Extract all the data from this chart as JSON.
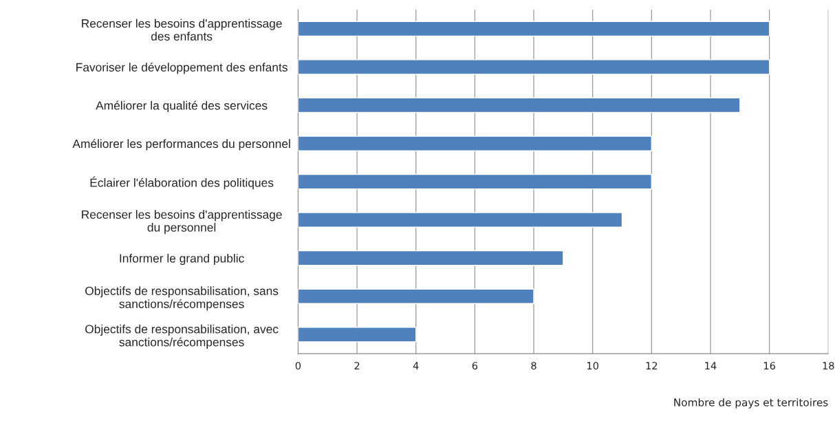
{
  "chart_data": {
    "type": "bar",
    "orientation": "horizontal",
    "categories": [
      "Recenser les besoins d'apprentissage\ndes enfants",
      "Favoriser le développement des enfants",
      "Améliorer la qualité des services",
      "Améliorer les performances du personnel",
      "Éclairer l'élaboration des politiques",
      "Recenser les besoins d'apprentissage\ndu personnel",
      "Informer le grand public",
      "Objectifs de responsabilisation, sans\nsanctions/récompenses",
      "Objectifs de responsabilisation, avec\nsanctions/récompenses"
    ],
    "values": [
      16,
      16,
      15,
      12,
      12,
      11,
      9,
      8,
      4
    ],
    "color": "#4f81bd",
    "xlabel": "Nombre de pays et territoires",
    "xlim": [
      0,
      18
    ],
    "xticks": [
      0,
      2,
      4,
      6,
      8,
      10,
      12,
      14,
      16,
      18
    ],
    "grid": "x",
    "legend": false
  }
}
